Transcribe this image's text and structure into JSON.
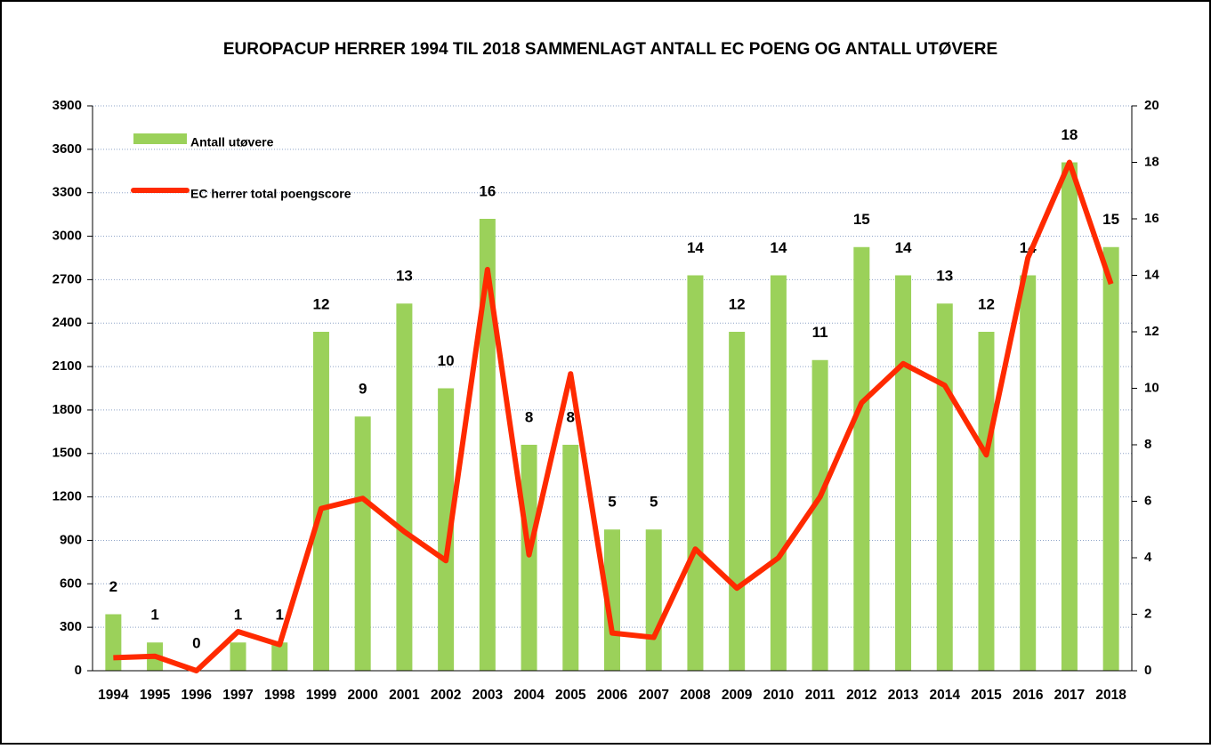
{
  "chart_data": {
    "type": "bar-line",
    "title": "EUROPACUP HERRER 1994 TIL 2018 SAMMENLAGT ANTALL EC POENG OG ANTALL UTØVERE",
    "categories": [
      "1994",
      "1995",
      "1996",
      "1997",
      "1998",
      "1999",
      "2000",
      "2001",
      "2002",
      "2003",
      "2004",
      "2005",
      "2006",
      "2007",
      "2008",
      "2009",
      "2010",
      "2011",
      "2012",
      "2013",
      "2014",
      "2015",
      "2016",
      "2017",
      "2018"
    ],
    "series": [
      {
        "name": "Antall utøvere",
        "type": "bar",
        "axis": "y2",
        "color": "#9bd15a",
        "values": [
          2,
          1,
          0,
          1,
          1,
          12,
          9,
          13,
          10,
          16,
          8,
          8,
          5,
          5,
          14,
          12,
          14,
          11,
          15,
          14,
          13,
          12,
          14,
          18,
          15
        ]
      },
      {
        "name": "EC herrer total poengscore",
        "type": "line",
        "color": "#ff2a00",
        "values": [
          90,
          100,
          0,
          270,
          180,
          1120,
          1190,
          960,
          760,
          2770,
          800,
          2050,
          260,
          230,
          840,
          570,
          780,
          1200,
          1850,
          2120,
          1970,
          1490,
          2850,
          3510,
          2670
        ]
      }
    ],
    "ylim": [
      0,
      3900
    ],
    "yticks": [
      0,
      300,
      600,
      900,
      1200,
      1500,
      1800,
      2100,
      2400,
      2700,
      3000,
      3300,
      3600,
      3900
    ],
    "y2lim": [
      0,
      20
    ],
    "y2ticks": [
      0,
      2,
      4,
      6,
      8,
      10,
      12,
      14,
      16,
      18,
      20
    ],
    "grid": true,
    "legend": "top-left"
  }
}
